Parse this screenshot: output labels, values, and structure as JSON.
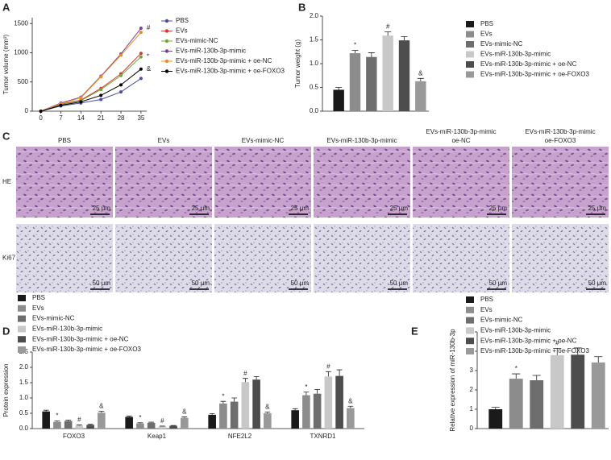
{
  "panel_labels": [
    "A",
    "B",
    "C",
    "D",
    "E"
  ],
  "chart_data": [
    {
      "type": "line",
      "y_label": "Tumor volume (mm³)",
      "x": [
        0,
        7,
        14,
        21,
        28,
        35
      ],
      "xlim": [
        -3,
        37
      ],
      "xticks": [
        0,
        7,
        14,
        21,
        28,
        35
      ],
      "ylim": [
        0,
        1600
      ],
      "yticks": [
        0,
        500,
        1000,
        1500
      ],
      "series": [
        {
          "name": "PBS",
          "color": "#4b4ba8",
          "values": [
            0,
            90,
            140,
            200,
            330,
            560
          ]
        },
        {
          "name": "EVs",
          "color": "#d9382e",
          "values": [
            0,
            120,
            190,
            390,
            640,
            990
          ]
        },
        {
          "name": "EVs-mimic-NC",
          "color": "#6aaa3a",
          "values": [
            0,
            110,
            180,
            370,
            610,
            930
          ]
        },
        {
          "name": "EVs-miR-130b-3p-mimic",
          "color": "#7c3f98",
          "values": [
            0,
            140,
            240,
            600,
            980,
            1420
          ]
        },
        {
          "name": "EVs-miR-130b-3p-mimic + oe-NC",
          "color": "#f08a24",
          "values": [
            0,
            130,
            230,
            590,
            960,
            1350
          ]
        },
        {
          "name": "EVs-miR-130b-3p-mimic + oe-FOXO3",
          "color": "#000000",
          "values": [
            0,
            100,
            160,
            270,
            450,
            720
          ]
        }
      ],
      "annotations": [
        {
          "series": "EVs-miR-130b-3p-mimic",
          "text": "#"
        },
        {
          "series": "EVs-mimic-NC",
          "text": "*"
        },
        {
          "series": "EVs-miR-130b-3p-mimic + oe-FOXO3",
          "text": "&"
        }
      ]
    },
    {
      "type": "bar",
      "y_label": "Tumor weight (g)",
      "categories": [
        "PBS",
        "EVs",
        "EVs-mimic-NC",
        "EVs-miR-130b-3p-mimic",
        "EVs-miR-130b-3p-mimic + oe-NC",
        "EVs-miR-130b-3p-mimic + oe-FOXO3"
      ],
      "values": [
        0.45,
        1.22,
        1.14,
        1.59,
        1.49,
        0.63
      ],
      "errors": [
        0.05,
        0.06,
        0.09,
        0.08,
        0.08,
        0.06
      ],
      "colors": [
        "#1a1a1a",
        "#8c8c8c",
        "#6e6e6e",
        "#c8c8c8",
        "#4d4d4d",
        "#999999"
      ],
      "ylim": [
        0,
        2
      ],
      "yticks": [
        {
          "value": 0,
          "label": "0.0"
        },
        0.5,
        {
          "value": 1,
          "label": "1.0"
        },
        1.5,
        {
          "value": 2,
          "label": "2.0"
        }
      ],
      "annotations": [
        {
          "category": "EVs",
          "text": "*"
        },
        {
          "category": "EVs-miR-130b-3p-mimic",
          "text": "#"
        },
        {
          "category": "EVs-miR-130b-3p-mimic + oe-FOXO3",
          "text": "&"
        }
      ]
    },
    {
      "type": "grouped_bar",
      "y_label": "Protein expression",
      "categories": [
        "FOXO3",
        "Keap1",
        "NFE2L2",
        "TXNRD1"
      ],
      "series": [
        {
          "name": "PBS",
          "color": "#1a1a1a",
          "values": [
            0.56,
            0.38,
            0.45,
            0.6
          ],
          "errors": [
            0.04,
            0.03,
            0.04,
            0.05
          ]
        },
        {
          "name": "EVs",
          "color": "#8c8c8c",
          "values": [
            0.22,
            0.17,
            0.82,
            1.09
          ],
          "errors": [
            0.03,
            0.02,
            0.07,
            0.1
          ]
        },
        {
          "name": "EVs-mimic-NC",
          "color": "#6e6e6e",
          "values": [
            0.25,
            0.19,
            0.88,
            1.14
          ],
          "errors": [
            0.03,
            0.02,
            0.12,
            0.14
          ]
        },
        {
          "name": "EVs-miR-130b-3p-mimic",
          "color": "#c8c8c8",
          "values": [
            0.1,
            0.07,
            1.52,
            1.7
          ],
          "errors": [
            0.02,
            0.01,
            0.12,
            0.16
          ]
        },
        {
          "name": "EVs-miR-130b-3p-mimic + oe-NC",
          "color": "#4d4d4d",
          "values": [
            0.12,
            0.09,
            1.6,
            1.72
          ],
          "errors": [
            0.02,
            0.01,
            0.1,
            0.2
          ]
        },
        {
          "name": "EVs-miR-130b-3p-mimic + oe-FOXO3",
          "color": "#999999",
          "values": [
            0.52,
            0.35,
            0.5,
            0.67
          ],
          "errors": [
            0.05,
            0.03,
            0.04,
            0.06
          ]
        }
      ],
      "ylim": [
        0,
        2.5
      ],
      "yticks": [
        {
          "value": 0,
          "label": "0.0"
        },
        0.5,
        {
          "value": 1,
          "label": "1.0"
        },
        1.5,
        {
          "value": 2,
          "label": "2.0"
        },
        2.5
      ],
      "annotations": [
        {
          "series": "EVs",
          "category": "FOXO3",
          "text": "*"
        },
        {
          "series": "EVs-miR-130b-3p-mimic",
          "category": "FOXO3",
          "text": "#"
        },
        {
          "series": "EVs-miR-130b-3p-mimic + oe-FOXO3",
          "category": "FOXO3",
          "text": "&"
        },
        {
          "series": "EVs",
          "category": "Keap1",
          "text": "*"
        },
        {
          "series": "EVs-miR-130b-3p-mimic",
          "category": "Keap1",
          "text": "#"
        },
        {
          "series": "EVs-miR-130b-3p-mimic + oe-FOXO3",
          "category": "Keap1",
          "text": "&"
        },
        {
          "series": "EVs",
          "category": "NFE2L2",
          "text": "*"
        },
        {
          "series": "EVs-miR-130b-3p-mimic",
          "category": "NFE2L2",
          "text": "#"
        },
        {
          "series": "EVs-miR-130b-3p-mimic + oe-FOXO3",
          "category": "NFE2L2",
          "text": "&"
        },
        {
          "series": "EVs",
          "category": "TXNRD1",
          "text": "*"
        },
        {
          "series": "EVs-miR-130b-3p-mimic",
          "category": "TXNRD1",
          "text": "#"
        },
        {
          "series": "EVs-miR-130b-3p-mimic + oe-FOXO3",
          "category": "TXNRD1",
          "text": "&"
        }
      ]
    },
    {
      "type": "bar",
      "y_label": "Relative expression of miR-130b-3p",
      "categories": [
        "PBS",
        "EVs",
        "EVs-mimic-NC",
        "EVs-miR-130b-3p-mimic",
        "EVs-miR-130b-3p-mimic + oe-NC",
        "EVs-miR-130b-3p-mimic + oe-FOXO3"
      ],
      "values": [
        1.0,
        2.58,
        2.5,
        3.8,
        3.82,
        3.42
      ],
      "errors": [
        0.1,
        0.25,
        0.25,
        0.35,
        0.35,
        0.3
      ],
      "colors": [
        "#1a1a1a",
        "#8c8c8c",
        "#6e6e6e",
        "#c8c8c8",
        "#4d4d4d",
        "#999999"
      ],
      "ylim": [
        0,
        5
      ],
      "yticks": [
        0,
        1,
        2,
        3,
        4,
        5
      ],
      "annotations": [
        {
          "category": "EVs",
          "text": "*"
        },
        {
          "category": "EVs-miR-130b-3p-mimic",
          "text": "#"
        }
      ]
    }
  ],
  "micrographs": {
    "columns": [
      [
        "PBS"
      ],
      [
        "EVs"
      ],
      [
        "EVs-mimic-NC"
      ],
      [
        "EVs-miR-130b-3p-mimic"
      ],
      [
        "EVs-miR-130b-3p-mimic",
        "oe-NC"
      ],
      [
        "EVs-miR-130b-3p-mimic",
        "oe-FOXO3"
      ]
    ],
    "rows": [
      "HE",
      "Ki67"
    ],
    "scale_bars": [
      "25 µm",
      "50 µm"
    ]
  }
}
